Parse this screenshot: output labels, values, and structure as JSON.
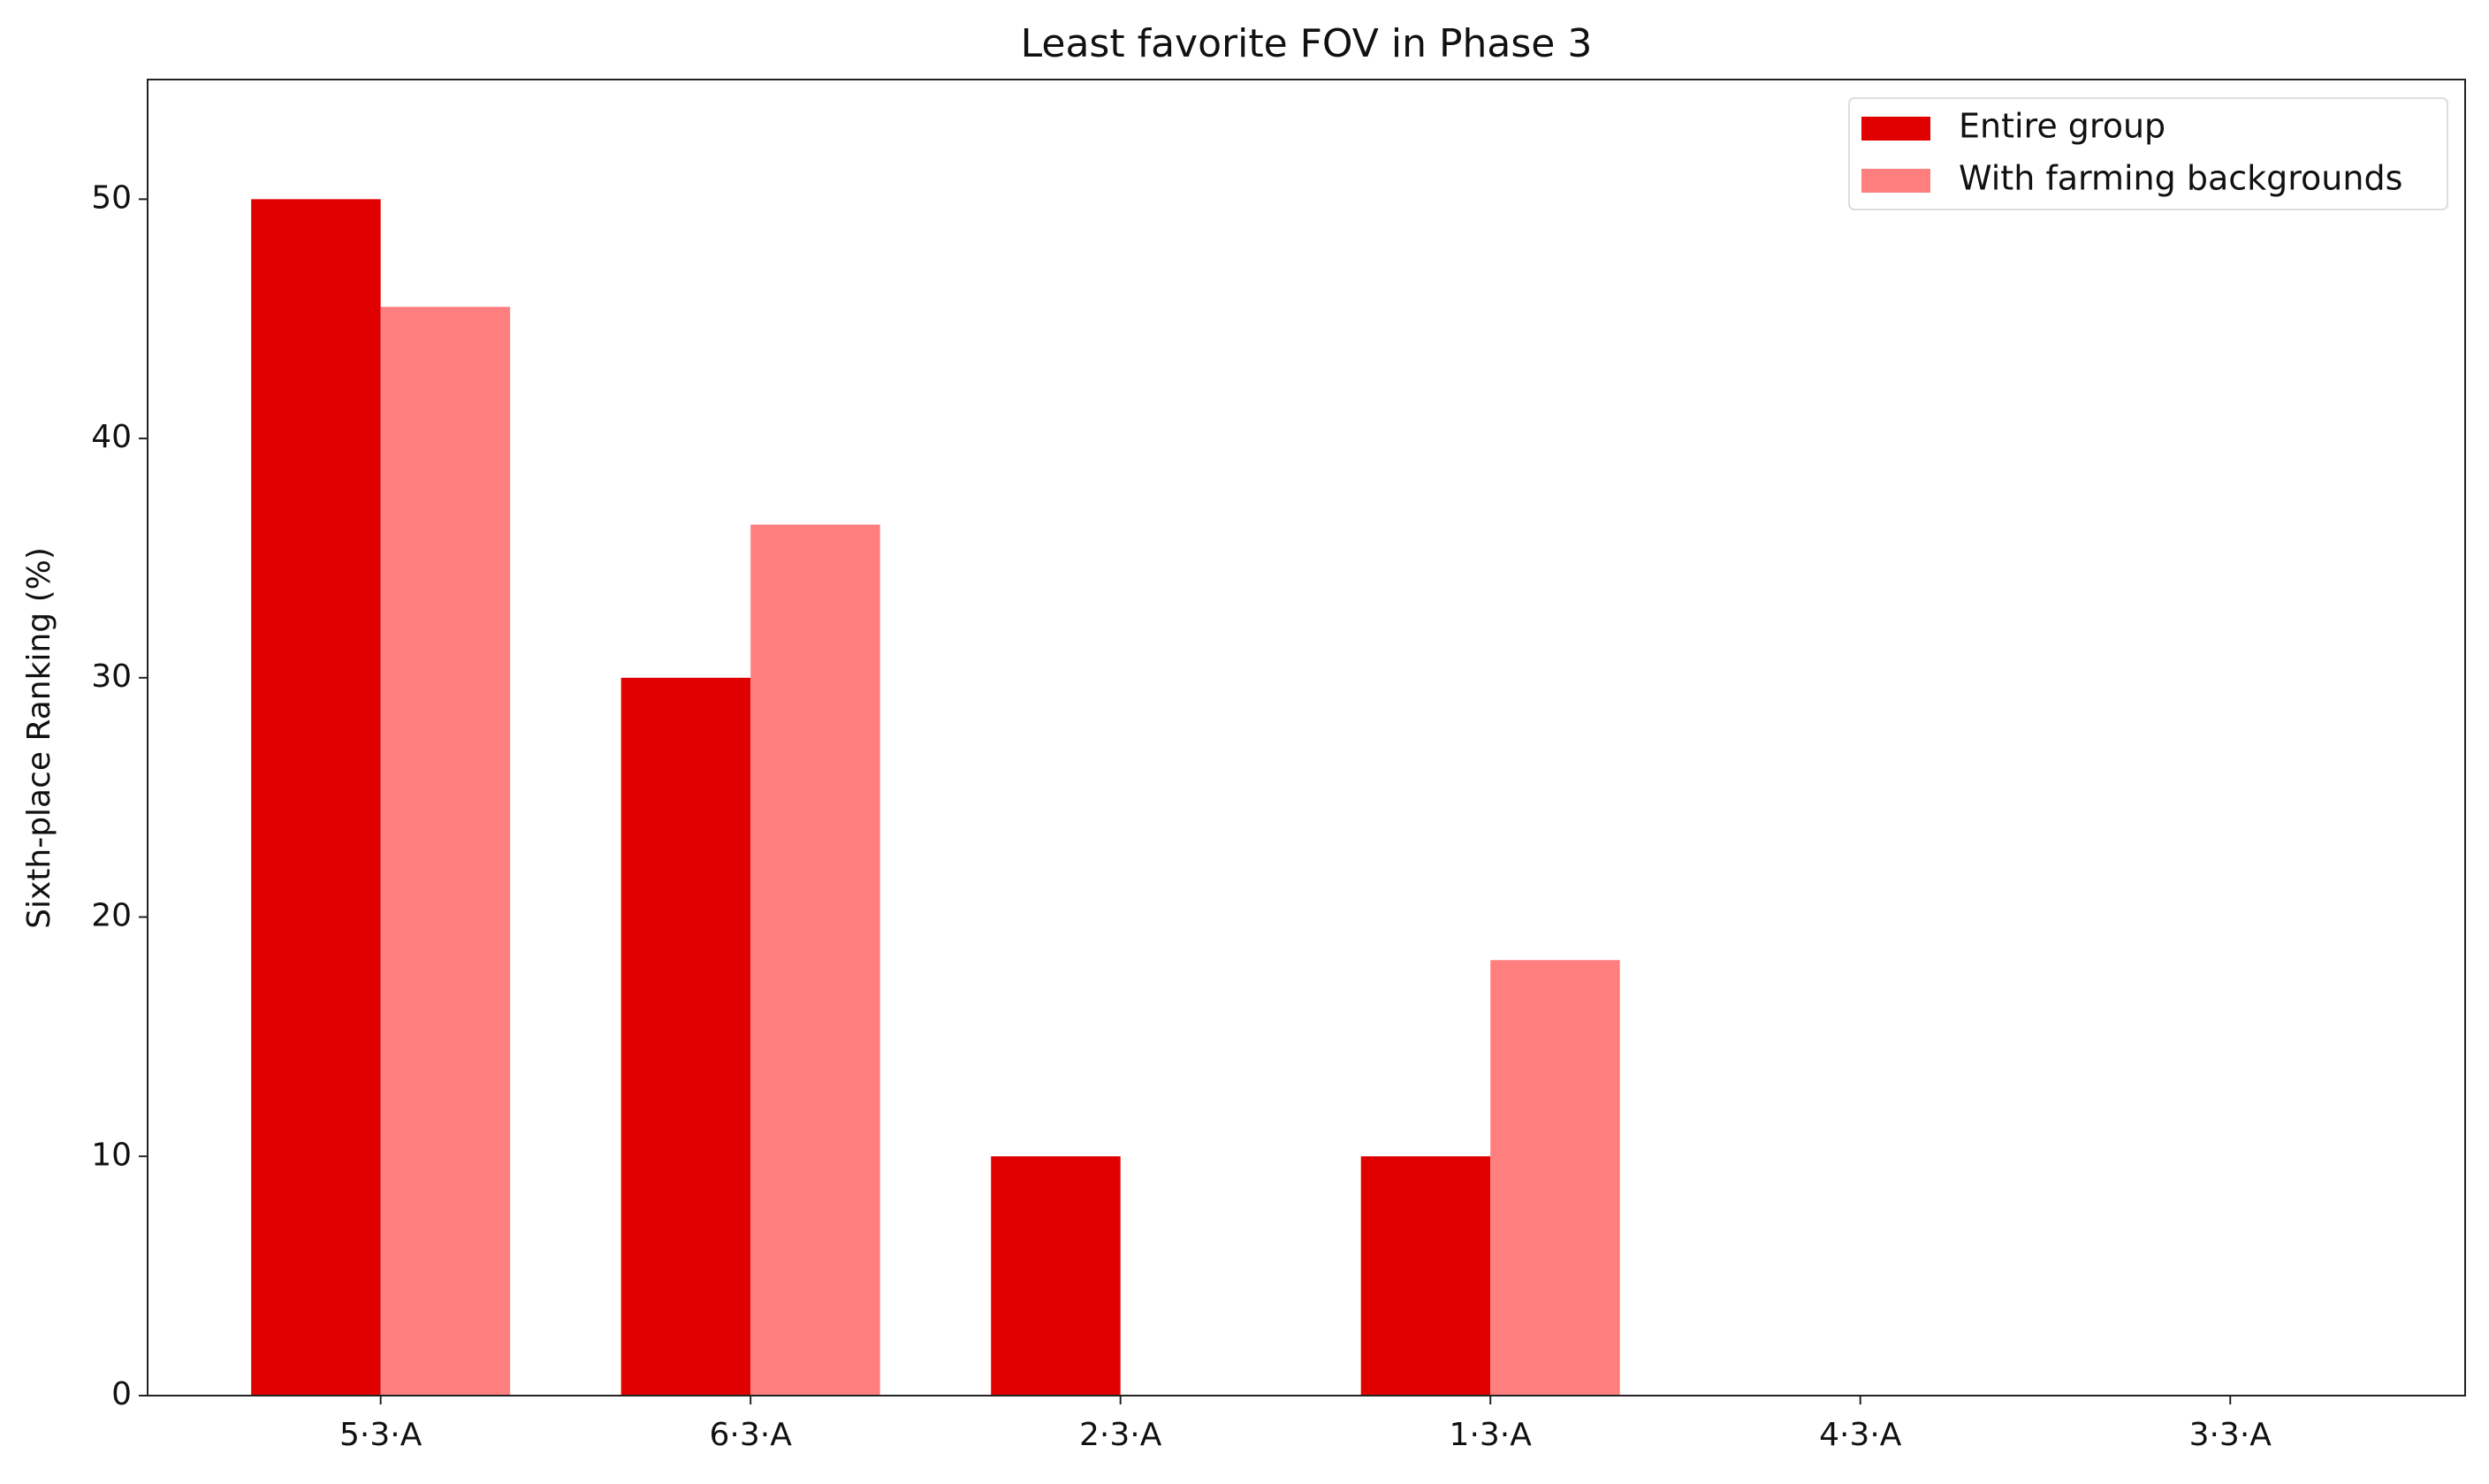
{
  "chart_data": {
    "type": "bar",
    "title": "Least favorite FOV in Phase 3",
    "y_label": "Sixth-place Ranking (%)",
    "categories": [
      "5·3·A",
      "6·3·A",
      "2·3·A",
      "1·3·A",
      "4·3·A",
      "3·3·A"
    ],
    "series": [
      {
        "name": "Entire group",
        "color": "#e00000",
        "values": [
          50,
          30,
          10,
          10,
          0,
          0
        ]
      },
      {
        "name": "With farming backgrounds",
        "color": "#ff7f7f",
        "values": [
          45.5,
          36.4,
          0,
          18.2,
          0,
          0
        ]
      }
    ],
    "ylim": [
      0,
      55
    ],
    "yticks": [
      0,
      10,
      20,
      30,
      40,
      50
    ],
    "grid": false,
    "legend": "upper right"
  }
}
